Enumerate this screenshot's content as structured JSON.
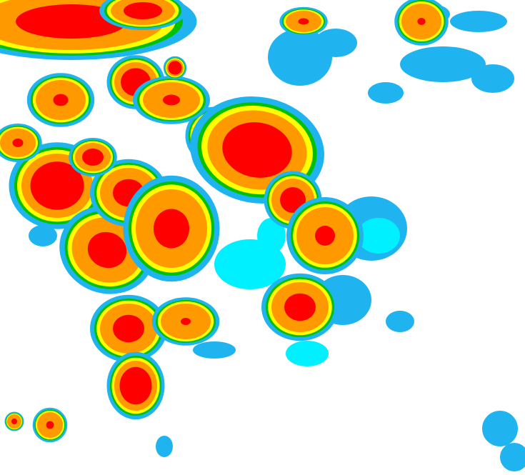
{
  "image": {
    "kind": "enhanced-infrared-cloud-top-imagery",
    "background_color": "#ffffff",
    "color_scale": [
      {
        "level": "cold-thin",
        "color": "#1fb4f0"
      },
      {
        "level": "cool",
        "color": "#00f0ff"
      },
      {
        "level": "moderate",
        "color": "#00c000"
      },
      {
        "level": "moderate-dark",
        "color": "#005a00"
      },
      {
        "level": "cold",
        "color": "#ffff00"
      },
      {
        "level": "very-cold",
        "color": "#ff9900"
      },
      {
        "level": "coldest",
        "color": "#ff0000"
      }
    ]
  }
}
